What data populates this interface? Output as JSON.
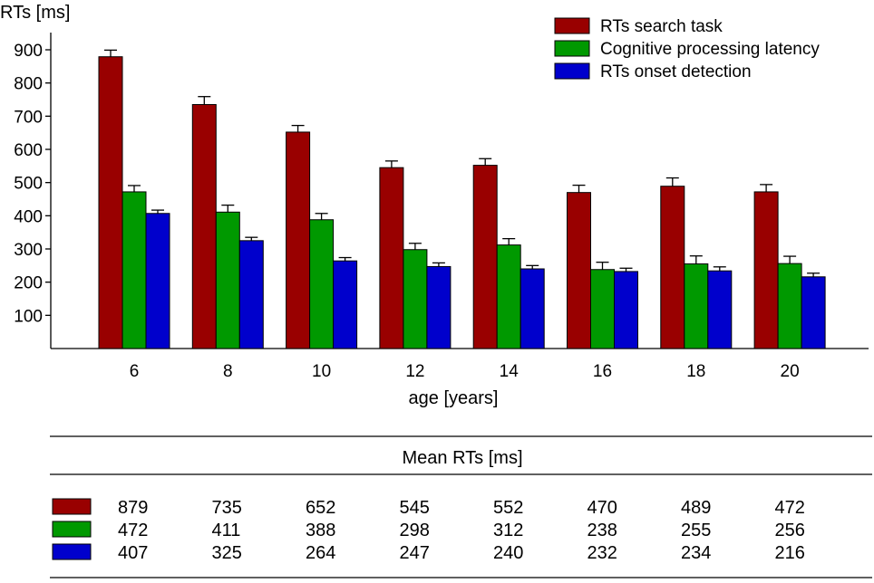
{
  "chart_data": {
    "type": "bar",
    "ylabel": "RTs [ms]",
    "xlabel": "age [years]",
    "categories": [
      "6",
      "8",
      "10",
      "12",
      "14",
      "16",
      "18",
      "20"
    ],
    "yticks": [
      100,
      200,
      300,
      400,
      500,
      600,
      700,
      800,
      900
    ],
    "ylim": [
      0,
      940
    ],
    "grid": false,
    "legend_position": "top-right",
    "series": [
      {
        "name": "RTs search task",
        "color": "#990000",
        "values": [
          879,
          735,
          652,
          545,
          552,
          470,
          489,
          472
        ],
        "errors": [
          20,
          24,
          20,
          20,
          20,
          22,
          25,
          22
        ]
      },
      {
        "name": "Cognitive processing latency",
        "color": "#009900",
        "values": [
          472,
          411,
          388,
          298,
          312,
          238,
          255,
          256
        ],
        "errors": [
          19,
          21,
          19,
          19,
          19,
          22,
          24,
          22
        ]
      },
      {
        "name": "RTs onset detection",
        "color": "#0000cc",
        "values": [
          407,
          325,
          264,
          247,
          240,
          232,
          234,
          216
        ],
        "errors": [
          10,
          10,
          10,
          11,
          10,
          10,
          12,
          11
        ]
      }
    ]
  },
  "table": {
    "title": "Mean RTs [ms]",
    "rows": [
      {
        "color": "#990000",
        "values": [
          "879",
          "735",
          "652",
          "545",
          "552",
          "470",
          "489",
          "472"
        ]
      },
      {
        "color": "#009900",
        "values": [
          "472",
          "411",
          "388",
          "298",
          "312",
          "238",
          "255",
          "256"
        ]
      },
      {
        "color": "#0000cc",
        "values": [
          "407",
          "325",
          "264",
          "247",
          "240",
          "232",
          "234",
          "216"
        ]
      }
    ]
  }
}
